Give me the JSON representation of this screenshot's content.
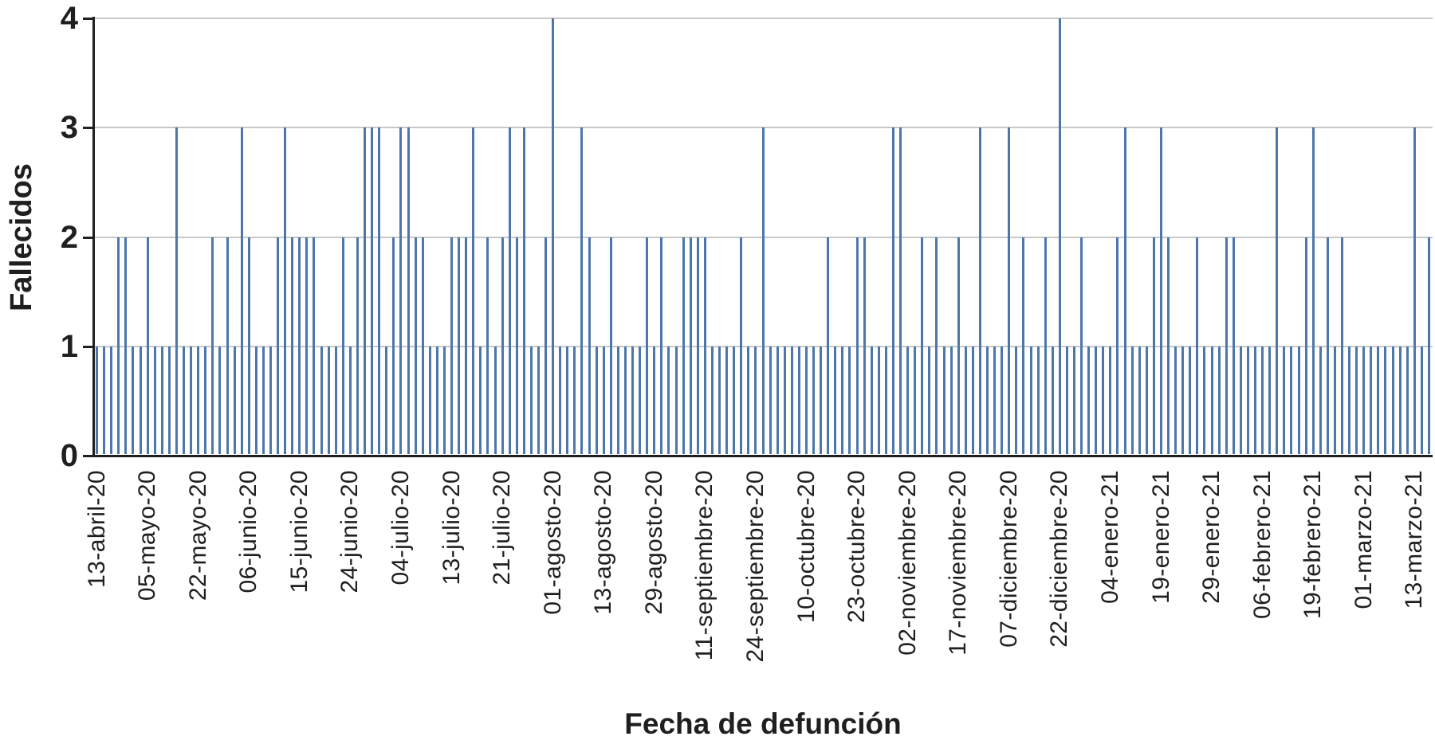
{
  "chart_data": {
    "type": "bar",
    "title": "",
    "xlabel": "Fecha de defunción",
    "ylabel": "Fallecidos",
    "ylim": [
      0,
      4
    ],
    "yticks": [
      0,
      1,
      2,
      3,
      4
    ],
    "grid": "horizontal",
    "legend": "none",
    "bar_color": "#4d77ab",
    "gridline_color": "#c8c8c8",
    "axis_color": "#1f1f1f",
    "x_count": 185,
    "tick_label_interval": 7,
    "tick_indices": [
      0,
      7,
      14,
      21,
      28,
      35,
      42,
      49,
      56,
      63,
      70,
      77,
      84,
      91,
      98,
      105,
      112,
      119,
      126,
      133,
      140,
      147,
      154,
      161,
      168,
      175,
      182
    ],
    "tick_labels": [
      "13-abril-20",
      "05-mayo-20",
      "22-mayo-20",
      "06-junio-20",
      "15-junio-20",
      "24-junio-20",
      "04-julio-20",
      "13-julio-20",
      "21-julio-20",
      "01-agosto-20",
      "13-agosto-20",
      "29-agosto-20",
      "11-septiembre-20",
      "24-septiembre-20",
      "10-octubre-20",
      "23-octubre-20",
      "02-noviembre-20",
      "17-noviembre-20",
      "07-diciembre-20",
      "22-diciembre-20",
      "04-enero-21",
      "19-enero-21",
      "29-enero-21",
      "06-febrero-21",
      "19-febrero-21",
      "01-marzo-21",
      "13-marzo-21"
    ],
    "values": [
      1,
      1,
      1,
      2,
      2,
      1,
      1,
      2,
      1,
      1,
      1,
      3,
      1,
      1,
      1,
      1,
      2,
      1,
      2,
      1,
      3,
      2,
      1,
      1,
      1,
      2,
      3,
      2,
      2,
      2,
      2,
      1,
      1,
      1,
      2,
      1,
      2,
      3,
      3,
      3,
      1,
      2,
      3,
      3,
      2,
      2,
      1,
      1,
      1,
      2,
      2,
      2,
      3,
      1,
      2,
      1,
      2,
      3,
      2,
      3,
      1,
      1,
      2,
      4,
      1,
      1,
      1,
      3,
      2,
      1,
      1,
      2,
      1,
      1,
      1,
      1,
      2,
      1,
      2,
      1,
      1,
      2,
      2,
      2,
      2,
      1,
      1,
      1,
      1,
      2,
      1,
      1,
      3,
      1,
      1,
      1,
      1,
      1,
      1,
      1,
      1,
      2,
      1,
      1,
      1,
      2,
      2,
      1,
      1,
      1,
      3,
      3,
      1,
      1,
      2,
      1,
      2,
      1,
      1,
      2,
      1,
      1,
      3,
      1,
      1,
      1,
      3,
      1,
      2,
      1,
      1,
      2,
      1,
      4,
      1,
      1,
      2,
      1,
      1,
      1,
      1,
      2,
      3,
      1,
      1,
      1,
      2,
      3,
      2,
      1,
      1,
      1,
      2,
      1,
      1,
      1,
      2,
      2,
      1,
      1,
      1,
      1,
      1,
      3,
      1,
      1,
      1,
      2,
      3,
      1,
      2,
      1,
      2,
      1,
      1,
      1,
      1,
      1,
      1,
      1,
      1,
      1,
      3,
      1,
      2
    ]
  }
}
